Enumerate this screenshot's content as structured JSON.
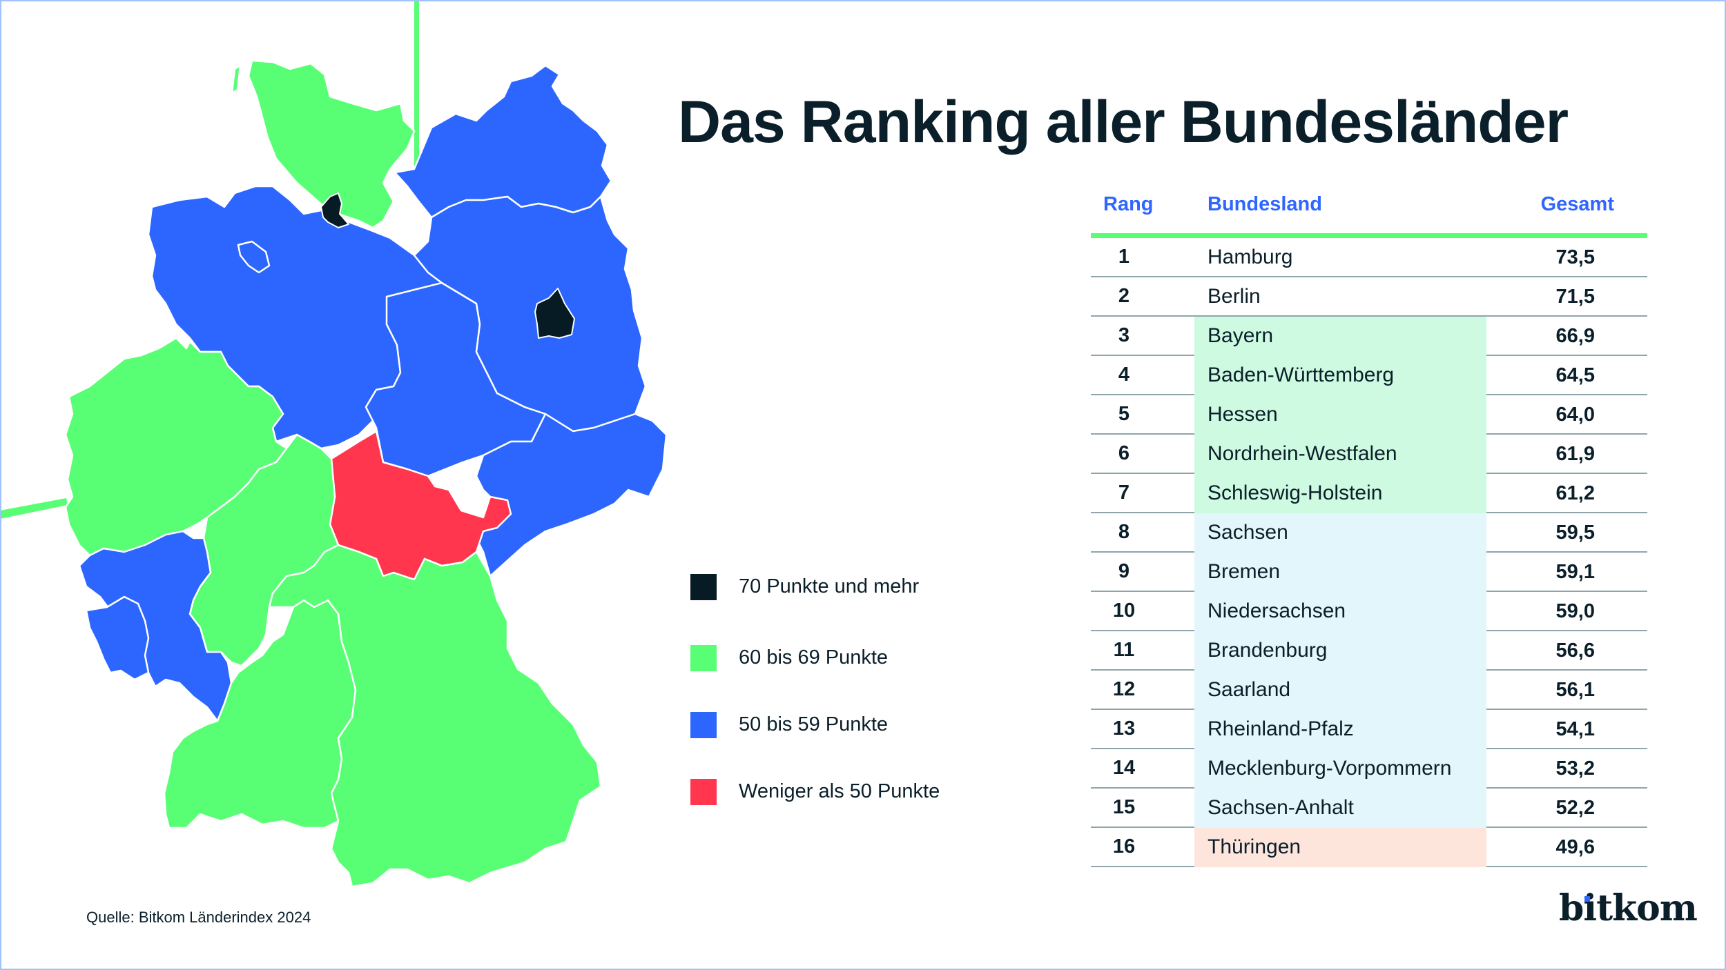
{
  "title": "Das Ranking aller Bundesländer",
  "table": {
    "headers": {
      "rank": "Rang",
      "state": "Bundesland",
      "total": "Gesamt"
    },
    "rows": [
      {
        "rank": "1",
        "state": "Hamburg",
        "total": "73,5",
        "highlight": ""
      },
      {
        "rank": "2",
        "state": "Berlin",
        "total": "71,5",
        "highlight": ""
      },
      {
        "rank": "3",
        "state": "Bayern",
        "total": "66,9",
        "highlight": "#cdfae0"
      },
      {
        "rank": "4",
        "state": "Baden-Württemberg",
        "total": "64,5",
        "highlight": "#cdfae0"
      },
      {
        "rank": "5",
        "state": "Hessen",
        "total": "64,0",
        "highlight": "#cdfae0"
      },
      {
        "rank": "6",
        "state": "Nordrhein-Westfalen",
        "total": "61,9",
        "highlight": "#cdfae0"
      },
      {
        "rank": "7",
        "state": "Schleswig-Holstein",
        "total": "61,2",
        "highlight": "#cdfae0"
      },
      {
        "rank": "8",
        "state": "Sachsen",
        "total": "59,5",
        "highlight": "#e3f6fb"
      },
      {
        "rank": "9",
        "state": "Bremen",
        "total": "59,1",
        "highlight": "#e3f6fb"
      },
      {
        "rank": "10",
        "state": "Niedersachsen",
        "total": "59,0",
        "highlight": "#e3f6fb"
      },
      {
        "rank": "11",
        "state": "Brandenburg",
        "total": "56,6",
        "highlight": "#e3f6fb"
      },
      {
        "rank": "12",
        "state": "Saarland",
        "total": "56,1",
        "highlight": "#e3f6fb"
      },
      {
        "rank": "13",
        "state": "Rheinland-Pfalz",
        "total": "54,1",
        "highlight": "#e3f6fb"
      },
      {
        "rank": "14",
        "state": "Mecklenburg-Vorpommern",
        "total": "53,2",
        "highlight": "#e3f6fb"
      },
      {
        "rank": "15",
        "state": "Sachsen-Anhalt",
        "total": "52,2",
        "highlight": "#e3f6fb"
      },
      {
        "rank": "16",
        "state": "Thüringen",
        "total": "49,6",
        "highlight": "#fde5dc"
      }
    ]
  },
  "legend": [
    {
      "label": "70 Punkte und mehr",
      "color": "#061b24"
    },
    {
      "label": "60 bis 69 Punkte",
      "color": "#58ff74"
    },
    {
      "label": "50 bis 59 Punkte",
      "color": "#2c66ff"
    },
    {
      "label": "Weniger als 50 Punkte",
      "color": "#ff364d"
    }
  ],
  "source": "Quelle: Bitkom Länderindex 2024",
  "logo": "bitkom",
  "colors": {
    "accent_green": "#58ff74",
    "header_blue": "#2f66ff",
    "text_dark": "#0b1f2a"
  },
  "chart_data": {
    "type": "table",
    "title": "Das Ranking aller Bundesländer",
    "columns": [
      "Rang",
      "Bundesland",
      "Gesamt"
    ],
    "categories": [
      "Hamburg",
      "Berlin",
      "Bayern",
      "Baden-Württemberg",
      "Hessen",
      "Nordrhein-Westfalen",
      "Schleswig-Holstein",
      "Sachsen",
      "Bremen",
      "Niedersachsen",
      "Brandenburg",
      "Saarland",
      "Rheinland-Pfalz",
      "Mecklenburg-Vorpommern",
      "Sachsen-Anhalt",
      "Thüringen"
    ],
    "values": [
      73.5,
      71.5,
      66.9,
      64.5,
      64.0,
      61.9,
      61.2,
      59.5,
      59.1,
      59.0,
      56.6,
      56.1,
      54.1,
      53.2,
      52.2,
      49.6
    ],
    "map_classes": {
      "70 Punkte und mehr": [
        "Hamburg",
        "Berlin"
      ],
      "60 bis 69 Punkte": [
        "Bayern",
        "Baden-Württemberg",
        "Hessen",
        "Nordrhein-Westfalen",
        "Schleswig-Holstein"
      ],
      "50 bis 59 Punkte": [
        "Sachsen",
        "Bremen",
        "Niedersachsen",
        "Brandenburg",
        "Saarland",
        "Rheinland-Pfalz",
        "Mecklenburg-Vorpommern",
        "Sachsen-Anhalt"
      ],
      "Weniger als 50 Punkte": [
        "Thüringen"
      ]
    },
    "source": "Quelle: Bitkom Länderindex 2024"
  }
}
